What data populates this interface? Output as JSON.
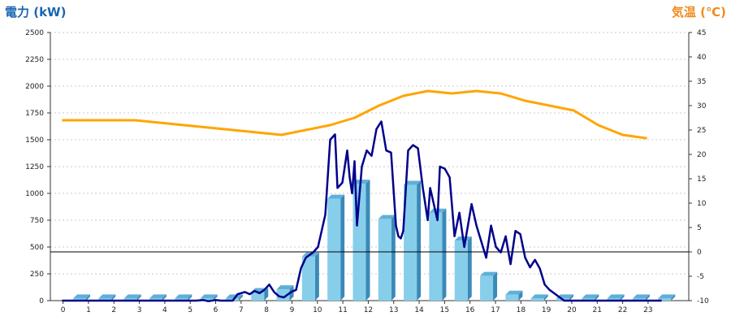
{
  "chart_data": {
    "type": "bar+line",
    "ylabel_left": "電力 (kW)",
    "ylabel_right": "気温 (℃)",
    "x_ticks": [
      "0",
      "1",
      "2",
      "3",
      "4",
      "5",
      "6",
      "7",
      "8",
      "9",
      "10",
      "11",
      "12",
      "13",
      "14",
      "15",
      "16",
      "17",
      "18",
      "19",
      "20",
      "21",
      "22",
      "23"
    ],
    "y_left_ticks": [
      "0",
      "250",
      "500",
      "750",
      "1000",
      "1250",
      "1500",
      "1750",
      "2000",
      "2250",
      "2500"
    ],
    "y_right_ticks": [
      "-10",
      "-5",
      "0",
      "5",
      "10",
      "15",
      "20",
      "25",
      "30",
      "35",
      "40",
      "45"
    ],
    "y_left_range": [
      0,
      2500
    ],
    "y_right_range": [
      -10,
      45
    ],
    "grid": true,
    "colors": {
      "bar": "#87ceeb",
      "power_line": "#00008b",
      "temperature_line": "#ffa500",
      "zero_line": "#000000",
      "left_title": "#1a66b0",
      "right_title": "#f08a1c"
    },
    "hourly_bars": [
      {
        "hour": 0,
        "value": 20
      },
      {
        "hour": 1,
        "value": 20
      },
      {
        "hour": 2,
        "value": 20
      },
      {
        "hour": 3,
        "value": 20
      },
      {
        "hour": 4,
        "value": 20
      },
      {
        "hour": 5,
        "value": 20
      },
      {
        "hour": 6,
        "value": 20
      },
      {
        "hour": 7,
        "value": 80
      },
      {
        "hour": 8,
        "value": 105
      },
      {
        "hour": 9,
        "value": 410
      },
      {
        "hour": 10,
        "value": 950
      },
      {
        "hour": 11,
        "value": 1090
      },
      {
        "hour": 12,
        "value": 760
      },
      {
        "hour": 13,
        "value": 1080
      },
      {
        "hour": 14,
        "value": 820
      },
      {
        "hour": 15,
        "value": 560
      },
      {
        "hour": 16,
        "value": 230
      },
      {
        "hour": 17,
        "value": 55
      },
      {
        "hour": 18,
        "value": 20
      },
      {
        "hour": 19,
        "value": 20
      },
      {
        "hour": 20,
        "value": 20
      },
      {
        "hour": 21,
        "value": 20
      },
      {
        "hour": 22,
        "value": 20
      },
      {
        "hour": 23,
        "value": 20
      }
    ],
    "power_series": [
      [
        0,
        0
      ],
      [
        5.5,
        0
      ],
      [
        5.8,
        5
      ],
      [
        6.0,
        -5
      ],
      [
        6.3,
        5
      ],
      [
        6.5,
        0
      ],
      [
        7.0,
        0
      ],
      [
        7.2,
        60
      ],
      [
        7.5,
        80
      ],
      [
        7.7,
        60
      ],
      [
        7.9,
        90
      ],
      [
        8.1,
        70
      ],
      [
        8.3,
        100
      ],
      [
        8.5,
        150
      ],
      [
        8.7,
        80
      ],
      [
        8.9,
        40
      ],
      [
        9.1,
        30
      ],
      [
        9.4,
        80
      ],
      [
        9.6,
        100
      ],
      [
        9.8,
        300
      ],
      [
        10.0,
        400
      ],
      [
        10.3,
        450
      ],
      [
        10.5,
        500
      ],
      [
        10.8,
        800
      ],
      [
        11.0,
        1500
      ],
      [
        11.2,
        1550
      ],
      [
        11.3,
        1050
      ],
      [
        11.5,
        1100
      ],
      [
        11.7,
        1400
      ],
      [
        11.8,
        1150
      ],
      [
        11.9,
        1000
      ],
      [
        12.0,
        1300
      ],
      [
        12.1,
        700
      ],
      [
        12.3,
        1250
      ],
      [
        12.5,
        1400
      ],
      [
        12.7,
        1350
      ],
      [
        12.9,
        1600
      ],
      [
        13.1,
        1670
      ],
      [
        13.3,
        1400
      ],
      [
        13.5,
        1380
      ],
      [
        13.7,
        700
      ],
      [
        13.8,
        600
      ],
      [
        13.9,
        580
      ],
      [
        14.0,
        650
      ],
      [
        14.2,
        1400
      ],
      [
        14.4,
        1450
      ],
      [
        14.6,
        1420
      ],
      [
        14.8,
        1050
      ],
      [
        15.0,
        750
      ],
      [
        15.1,
        1050
      ],
      [
        15.3,
        850
      ],
      [
        15.4,
        750
      ],
      [
        15.5,
        1250
      ],
      [
        15.7,
        1230
      ],
      [
        15.9,
        1150
      ],
      [
        16.1,
        600
      ],
      [
        16.3,
        820
      ],
      [
        16.5,
        500
      ],
      [
        16.8,
        900
      ],
      [
        17.0,
        700
      ],
      [
        17.2,
        550
      ],
      [
        17.4,
        400
      ],
      [
        17.6,
        700
      ],
      [
        17.8,
        500
      ],
      [
        18.0,
        450
      ],
      [
        18.2,
        600
      ],
      [
        18.4,
        340
      ],
      [
        18.6,
        650
      ],
      [
        18.8,
        620
      ],
      [
        19.0,
        400
      ],
      [
        19.2,
        310
      ],
      [
        19.4,
        380
      ],
      [
        19.6,
        300
      ],
      [
        19.8,
        150
      ],
      [
        20.0,
        100
      ],
      [
        20.3,
        50
      ],
      [
        20.6,
        0
      ],
      [
        21.0,
        0
      ],
      [
        24.6,
        0
      ]
    ],
    "temperature_series": [
      [
        0,
        27
      ],
      [
        1,
        27
      ],
      [
        2,
        27
      ],
      [
        3,
        27
      ],
      [
        4,
        26.5
      ],
      [
        5,
        26
      ],
      [
        6,
        25.5
      ],
      [
        7,
        25
      ],
      [
        8,
        24.5
      ],
      [
        9,
        24
      ],
      [
        10,
        25
      ],
      [
        11,
        26
      ],
      [
        12,
        27.5
      ],
      [
        13,
        30
      ],
      [
        14,
        32
      ],
      [
        15,
        33
      ],
      [
        16,
        32.5
      ],
      [
        17,
        33
      ],
      [
        18,
        32.5
      ],
      [
        19,
        31
      ],
      [
        20,
        30
      ],
      [
        21,
        29
      ],
      [
        22,
        26
      ],
      [
        23,
        24
      ],
      [
        24,
        23.3
      ]
    ]
  }
}
